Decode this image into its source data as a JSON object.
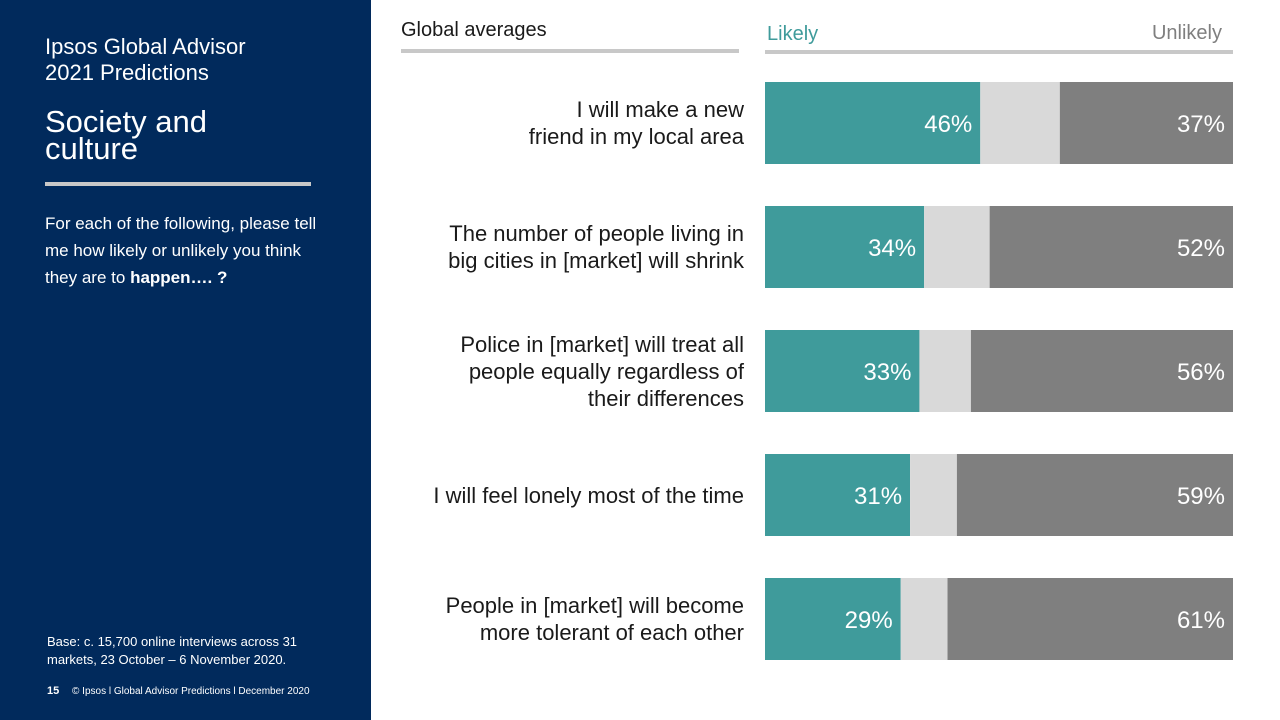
{
  "sidebar": {
    "title_line1": "Ipsos Global Advisor",
    "title_line2": "2021 Predictions",
    "subtitle_line1": "Society and",
    "subtitle_line2": "culture",
    "question_lead": "For each of the following, please tell me how likely or unlikely you think they are to",
    "question_bold": "happen…. ?",
    "base_text": "Base: c. 15,700 online interviews across 31 markets,  23 October – 6 November 2020.",
    "page_number": "15",
    "footer_text": "© Ipsos l Global Advisor Predictions l December 2020"
  },
  "header": {
    "global_label": "Global averages",
    "likely_label": "Likely",
    "unlikely_label": "Unlikely"
  },
  "colors": {
    "sidebar_bg": "#012a5c",
    "likely": "#3f9b9b",
    "neutral": "#d9d9d9",
    "unlikely": "#7f7f7f",
    "rule": "#c8c8c8"
  },
  "chart_data": {
    "type": "bar",
    "orientation": "horizontal",
    "stacked": true,
    "categories": [
      "I will make a new\nfriend in my local area",
      "The number of people living in\nbig cities in [market] will shrink",
      "Police in [market] will treat all\npeople equally regardless of\ntheir differences",
      "I will feel lonely most of the time",
      "People in [market] will become\nmore tolerant of each other"
    ],
    "series": [
      {
        "name": "Likely",
        "values": [
          46,
          34,
          33,
          31,
          29
        ],
        "labels": [
          "46%",
          "34%",
          "33%",
          "31%",
          "29%"
        ]
      },
      {
        "values": [
          17,
          14,
          11,
          10,
          10
        ]
      },
      {
        "name": "Unlikely",
        "values": [
          37,
          52,
          56,
          59,
          61
        ],
        "labels": [
          "37%",
          "52%",
          "56%",
          "59%",
          "61%"
        ]
      }
    ],
    "xlim": [
      0,
      100
    ],
    "title": "Global averages"
  }
}
